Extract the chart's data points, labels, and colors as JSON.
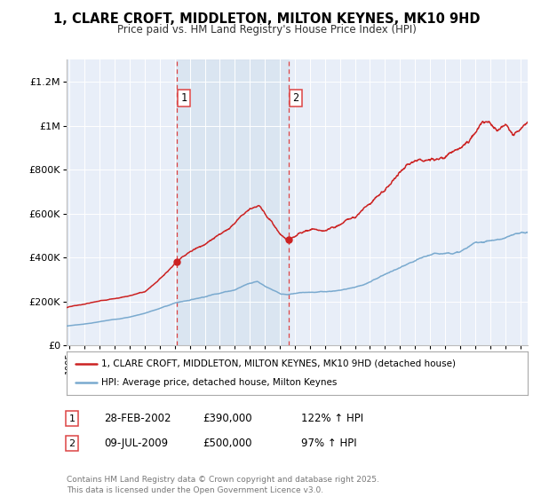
{
  "title": "1, CLARE CROFT, MIDDLETON, MILTON KEYNES, MK10 9HD",
  "subtitle": "Price paid vs. HM Land Registry's House Price Index (HPI)",
  "background_color": "#ffffff",
  "plot_bg_color": "#e8eef8",
  "grid_color": "#ffffff",
  "sale1_date": 2002.15,
  "sale1_price": 390000,
  "sale1_label": "1",
  "sale2_date": 2009.58,
  "sale2_price": 500000,
  "sale2_label": "2",
  "vline_color": "#dd4444",
  "highlight_color": "#d8e4f0",
  "red_line_color": "#cc2222",
  "blue_line_color": "#7aaacf",
  "legend_label_red": "1, CLARE CROFT, MIDDLETON, MILTON KEYNES, MK10 9HD (detached house)",
  "legend_label_blue": "HPI: Average price, detached house, Milton Keynes",
  "table_rows": [
    {
      "num": "1",
      "date": "28-FEB-2002",
      "price": "£390,000",
      "hpi": "122% ↑ HPI"
    },
    {
      "num": "2",
      "date": "09-JUL-2009",
      "price": "£500,000",
      "hpi": "97% ↑ HPI"
    }
  ],
  "footer": "Contains HM Land Registry data © Crown copyright and database right 2025.\nThis data is licensed under the Open Government Licence v3.0.",
  "ylim": [
    0,
    1300000
  ],
  "xlim_start": 1994.8,
  "xlim_end": 2025.5,
  "yticks": [
    0,
    200000,
    400000,
    600000,
    800000,
    1000000,
    1200000
  ],
  "ytick_labels": [
    "£0",
    "£200K",
    "£400K",
    "£600K",
    "£800K",
    "£1M",
    "£1.2M"
  ]
}
